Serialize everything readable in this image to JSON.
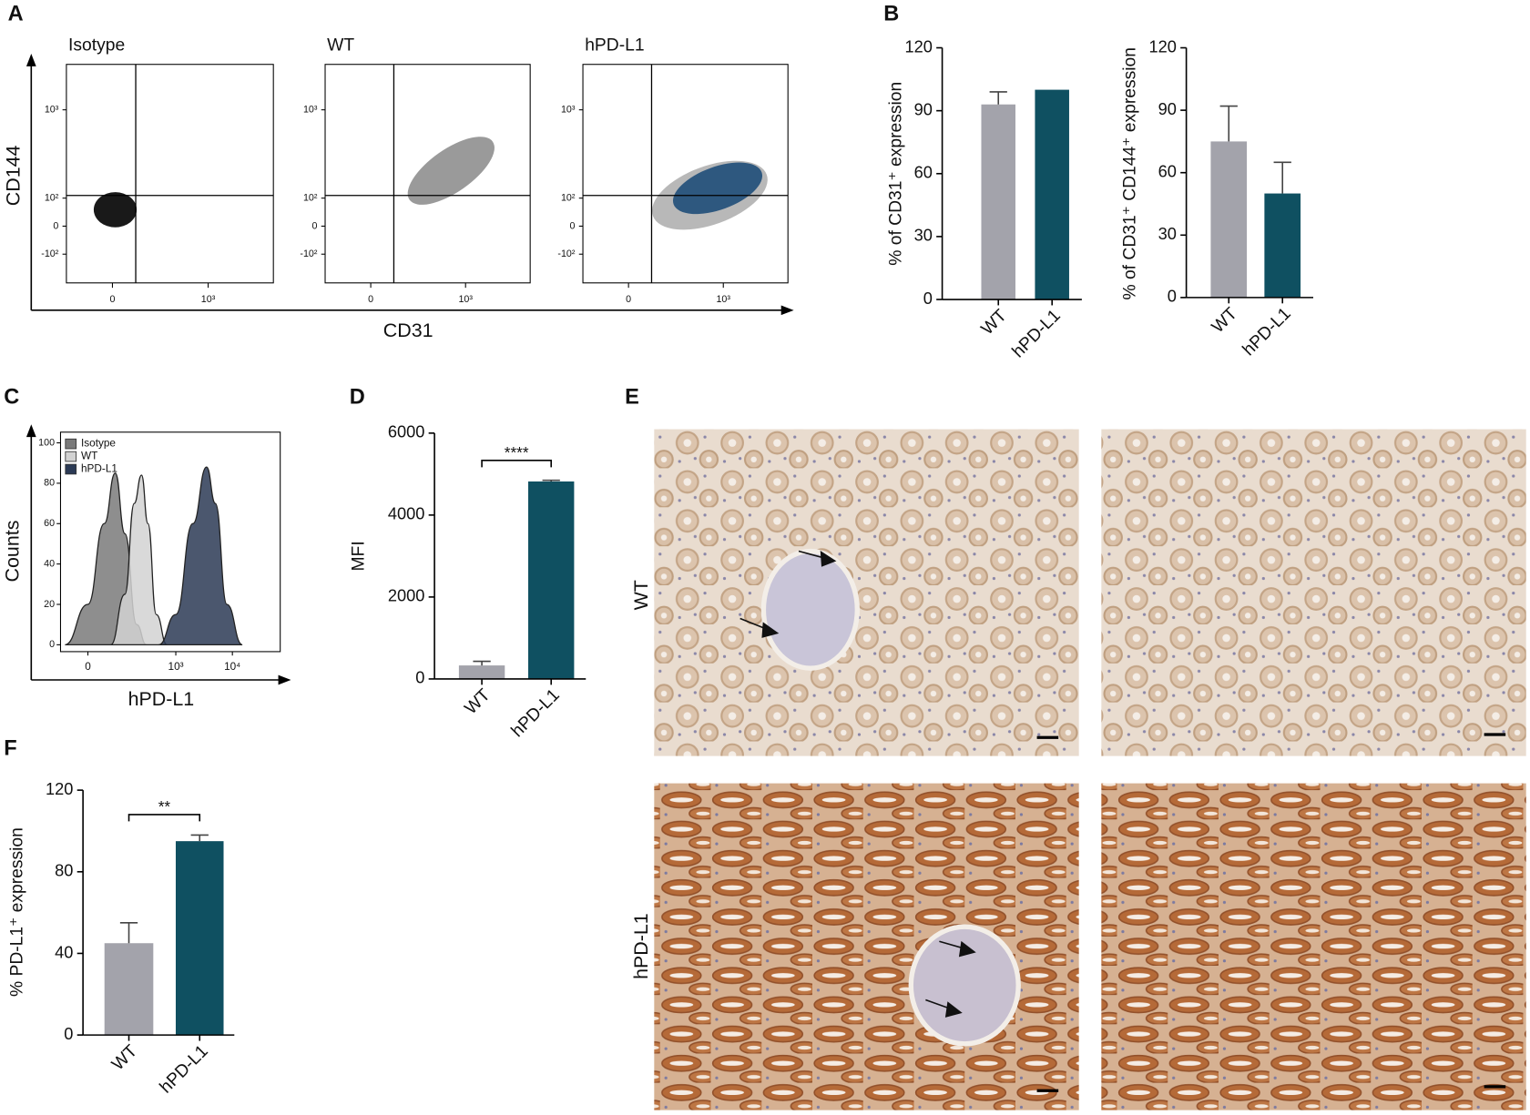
{
  "chart_data": [
    {
      "type": "flow",
      "panel": "A",
      "x_label": "CD31",
      "y_label": "CD144",
      "plots": [
        {
          "title": "Isotype",
          "color": "#000000"
        },
        {
          "title": "WT",
          "color": "#8f8f8f"
        },
        {
          "title": "hPD-L1",
          "color": "#1f4e79"
        }
      ],
      "xlim": [
        -240,
        5900
      ],
      "xticks": [
        0,
        {
          "value": 1000,
          "label": "10³"
        }
      ],
      "ylim": [
        -245,
        2770
      ],
      "yticks": [
        {
          "value": -100,
          "label": "-10²"
        },
        0,
        {
          "value": 100,
          "label": "10²"
        },
        {
          "value": 1000,
          "label": "10³"
        }
      ]
    },
    {
      "type": "bar",
      "panel": "B",
      "y_label": "% of CD31⁺ expression",
      "categories": [
        "WT",
        "hPD-L1"
      ],
      "values": [
        93,
        100
      ],
      "errors": [
        6,
        null
      ],
      "colors": [
        "#a3a3ab",
        "#0f5061"
      ],
      "ylim": [
        0,
        120
      ],
      "yticks": [
        0,
        30,
        60,
        90,
        120
      ]
    },
    {
      "type": "bar",
      "y_label": "% of CD31⁺ CD144⁺ expression",
      "categories": [
        "WT",
        "hPD-L1"
      ],
      "values": [
        75,
        50
      ],
      "errors": [
        17,
        15
      ],
      "colors": [
        "#a3a3ab",
        "#0f5061"
      ],
      "ylim": [
        0,
        120
      ],
      "yticks": [
        0,
        30,
        60,
        90,
        120
      ]
    },
    {
      "type": "density",
      "panel": "C",
      "x_label": "hPD-L1",
      "y_label": "Counts",
      "series": [
        {
          "name": "Isotype",
          "color": "#7a7a7a",
          "x": [
            -60,
            0,
            40,
            76,
            120,
            200,
            300
          ],
          "values": [
            0,
            20,
            60,
            85,
            55,
            10,
            0
          ]
        },
        {
          "name": "WT",
          "color": "#d2d2d2",
          "x": [
            60,
            120,
            180,
            245,
            320,
            450,
            700
          ],
          "values": [
            0,
            25,
            70,
            84,
            60,
            15,
            0
          ]
        },
        {
          "name": "hPD-L1",
          "color": "#2b3a55",
          "x": [
            500,
            1000,
            2000,
            3500,
            5000,
            8000,
            15000
          ],
          "values": [
            0,
            15,
            60,
            88,
            70,
            20,
            0
          ]
        }
      ],
      "xlim": [
        -76,
        70000
      ],
      "xticks": [
        0,
        {
          "value": 1000,
          "label": "10³"
        },
        {
          "value": 10000,
          "label": "10⁴"
        }
      ],
      "ylim": [
        -3.4,
        105.3
      ],
      "yticks": [
        0,
        20,
        40,
        60,
        80,
        100
      ]
    },
    {
      "type": "bar",
      "panel": "D",
      "y_label": "MFI",
      "categories": [
        "WT",
        "hPD-L1"
      ],
      "values": [
        330,
        4820
      ],
      "errors": [
        100,
        30
      ],
      "colors": [
        "#a3a3ab",
        "#0f5061"
      ],
      "ylim": [
        0,
        6000
      ],
      "yticks": [
        0,
        2000,
        4000,
        6000
      ],
      "significance": "****"
    },
    {
      "type": "bar",
      "panel": "F",
      "y_label": "% PD-L1⁺ expression",
      "categories": [
        "WT",
        "hPD-L1"
      ],
      "values": [
        45,
        95
      ],
      "errors": [
        10,
        3
      ],
      "colors": [
        "#a3a3ab",
        "#0f5061"
      ],
      "ylim": [
        0,
        120
      ],
      "yticks": [
        0,
        40,
        80,
        120
      ],
      "significance": "**"
    }
  ],
  "images": {
    "panel": "E",
    "rows": [
      "WT",
      "hPD-L1"
    ]
  }
}
